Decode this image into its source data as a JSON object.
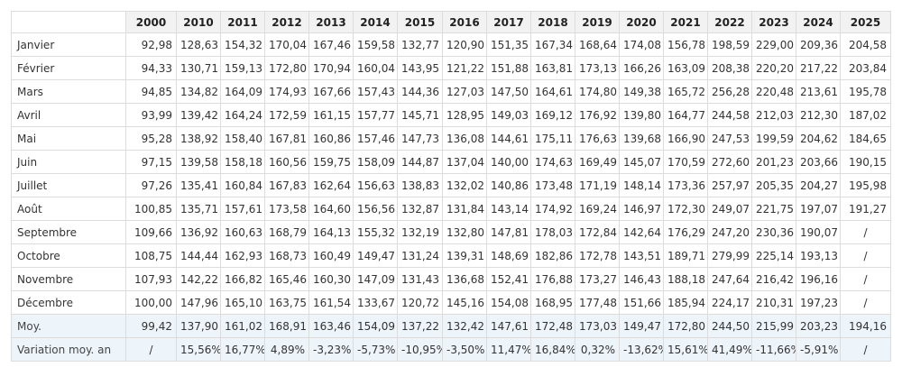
{
  "table": {
    "years": [
      "2000",
      "2010",
      "2011",
      "2012",
      "2013",
      "2014",
      "2015",
      "2016",
      "2017",
      "2018",
      "2019",
      "2020",
      "2021",
      "2022",
      "2023",
      "2024",
      "2025"
    ],
    "rows": [
      {
        "label": "Janvier",
        "values": [
          "92,98",
          "128,63",
          "154,32",
          "170,04",
          "167,46",
          "159,58",
          "132,77",
          "120,90",
          "151,35",
          "167,34",
          "168,64",
          "174,08",
          "156,78",
          "198,59",
          "229,00",
          "209,36",
          "204,58"
        ]
      },
      {
        "label": "Février",
        "values": [
          "94,33",
          "130,71",
          "159,13",
          "172,80",
          "170,94",
          "160,04",
          "143,95",
          "121,22",
          "151,88",
          "163,81",
          "173,13",
          "166,26",
          "163,09",
          "208,38",
          "220,20",
          "217,22",
          "203,84"
        ]
      },
      {
        "label": "Mars",
        "values": [
          "94,85",
          "134,82",
          "164,09",
          "174,93",
          "167,66",
          "157,43",
          "144,36",
          "127,03",
          "147,50",
          "164,61",
          "174,80",
          "149,38",
          "165,72",
          "256,28",
          "220,48",
          "213,61",
          "195,78"
        ]
      },
      {
        "label": "Avril",
        "values": [
          "93,99",
          "139,42",
          "164,24",
          "172,59",
          "161,15",
          "157,77",
          "145,71",
          "128,95",
          "149,03",
          "169,12",
          "176,92",
          "139,80",
          "164,77",
          "244,58",
          "212,03",
          "212,30",
          "187,02"
        ]
      },
      {
        "label": "Mai",
        "values": [
          "95,28",
          "138,92",
          "158,40",
          "167,81",
          "160,86",
          "157,46",
          "147,73",
          "136,08",
          "144,61",
          "175,11",
          "176,63",
          "139,68",
          "166,90",
          "247,53",
          "199,59",
          "204,62",
          "184,65"
        ]
      },
      {
        "label": "Juin",
        "values": [
          "97,15",
          "139,58",
          "158,18",
          "160,56",
          "159,75",
          "158,09",
          "144,87",
          "137,04",
          "140,00",
          "174,63",
          "169,49",
          "145,07",
          "170,59",
          "272,60",
          "201,23",
          "203,66",
          "190,15"
        ]
      },
      {
        "label": "Juillet",
        "values": [
          "97,26",
          "135,41",
          "160,84",
          "167,83",
          "162,64",
          "156,63",
          "138,83",
          "132,02",
          "140,86",
          "173,48",
          "171,19",
          "148,14",
          "173,36",
          "257,97",
          "205,35",
          "204,27",
          "195,98"
        ]
      },
      {
        "label": "Août",
        "values": [
          "100,85",
          "135,71",
          "157,61",
          "173,58",
          "164,60",
          "156,56",
          "132,87",
          "131,84",
          "143,14",
          "174,92",
          "169,24",
          "146,97",
          "172,30",
          "249,07",
          "221,75",
          "197,07",
          "191,27"
        ]
      },
      {
        "label": "Septembre",
        "values": [
          "109,66",
          "136,92",
          "160,63",
          "168,79",
          "164,13",
          "155,32",
          "132,19",
          "132,80",
          "147,81",
          "178,03",
          "172,84",
          "142,64",
          "176,29",
          "247,20",
          "230,36",
          "190,07",
          "/"
        ]
      },
      {
        "label": "Octobre",
        "values": [
          "108,75",
          "144,44",
          "162,93",
          "168,73",
          "160,49",
          "149,47",
          "131,24",
          "139,31",
          "148,69",
          "182,86",
          "172,78",
          "143,51",
          "189,71",
          "279,99",
          "225,14",
          "193,13",
          "/"
        ]
      },
      {
        "label": "Novembre",
        "values": [
          "107,93",
          "142,22",
          "166,82",
          "165,46",
          "160,30",
          "147,09",
          "131,43",
          "136,68",
          "152,41",
          "176,88",
          "173,27",
          "146,43",
          "188,18",
          "247,64",
          "216,42",
          "196,16",
          "/"
        ]
      },
      {
        "label": "Décembre",
        "values": [
          "100,00",
          "147,96",
          "165,10",
          "163,75",
          "161,54",
          "133,67",
          "120,72",
          "145,16",
          "154,08",
          "168,95",
          "177,48",
          "151,66",
          "185,94",
          "224,17",
          "210,31",
          "197,23",
          "/"
        ]
      }
    ],
    "summary": [
      {
        "label": "Moy.",
        "values": [
          "99,42",
          "137,90",
          "161,02",
          "168,91",
          "163,46",
          "154,09",
          "137,22",
          "132,42",
          "147,61",
          "172,48",
          "173,03",
          "149,47",
          "172,80",
          "244,50",
          "215,99",
          "203,23",
          "194,16"
        ]
      },
      {
        "label": "Variation moy. an",
        "values": [
          "/",
          "15,56%",
          "16,77%",
          "4,89%",
          "-3,23%",
          "-5,73%",
          "-10,95%",
          "-3,50%",
          "11,47%",
          "16,84%",
          "0,32%",
          "-13,62%",
          "15,61%",
          "41,49%",
          "-11,66%",
          "-5,91%",
          "/"
        ]
      }
    ]
  }
}
